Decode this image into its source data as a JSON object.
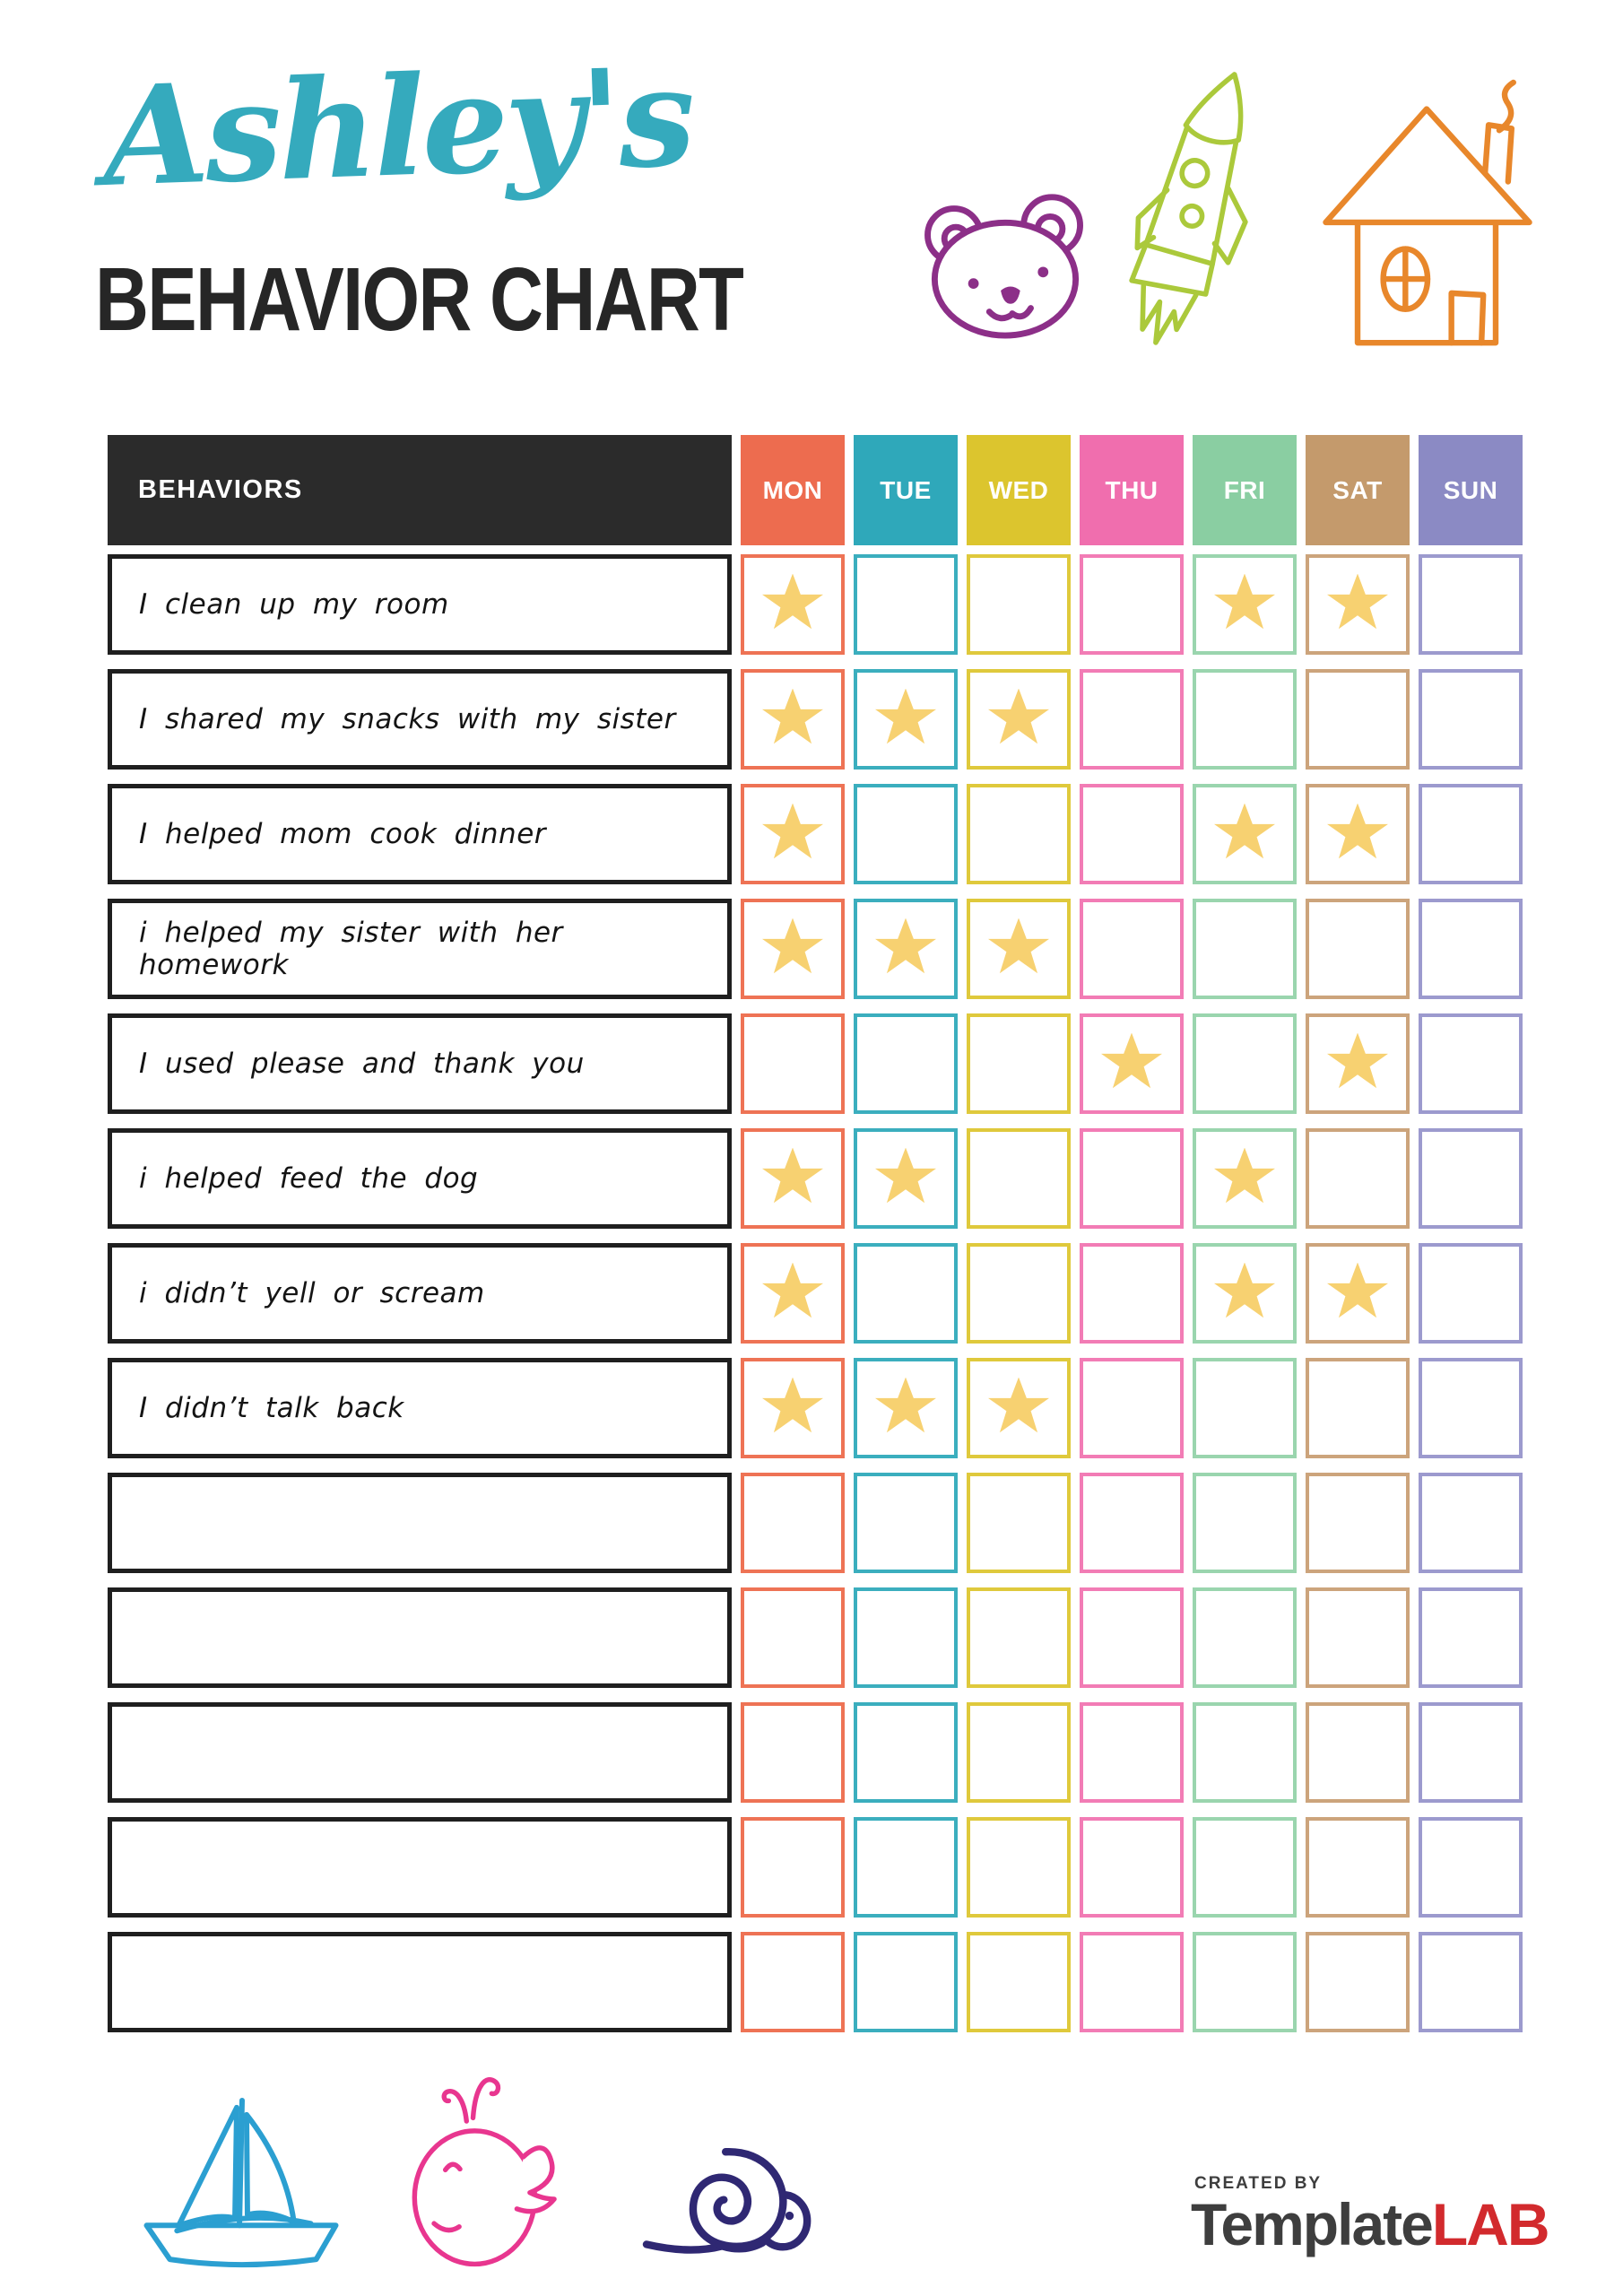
{
  "title": {
    "name_script": "Ashley's",
    "heading": "BEHAVIOR CHART"
  },
  "colors": {
    "title_teal": "#35AABD",
    "heading_dark": "#262626",
    "header_bg": "#2B2B2B",
    "star": "#F7D171",
    "bear": "#8C2F88",
    "rocket": "#ABC93B",
    "house": "#E8872B",
    "boat": "#2B9FD1",
    "whale": "#E8368F",
    "snail": "#2F2873",
    "logo_dark": "#3E3E3E",
    "logo_red": "#D22A2D"
  },
  "doodles": {
    "top": [
      "bear-doodle",
      "rocket-doodle",
      "house-doodle"
    ],
    "bottom": [
      "sailboat-doodle",
      "whale-doodle",
      "snail-doodle"
    ]
  },
  "table": {
    "behaviors_header": "BEHAVIORS",
    "days": [
      {
        "label": "MON",
        "color": "#ED6C4F",
        "border": "#EE7355"
      },
      {
        "label": "TUE",
        "color": "#2FA8BA",
        "border": "#3BAEBE"
      },
      {
        "label": "WED",
        "color": "#DCC52E",
        "border": "#DFC93C"
      },
      {
        "label": "THU",
        "color": "#F06EAE",
        "border": "#F27CB5"
      },
      {
        "label": "FRI",
        "color": "#8ACEA2",
        "border": "#9AD5AE"
      },
      {
        "label": "SAT",
        "color": "#C49A6C",
        "border": "#CCA47C"
      },
      {
        "label": "SUN",
        "color": "#8B8AC4",
        "border": "#9C9ACE"
      }
    ],
    "rows": [
      {
        "label": "I clean up my room",
        "stars": [
          1,
          0,
          0,
          0,
          1,
          1,
          0
        ]
      },
      {
        "label": "I shared my snacks with my sister",
        "stars": [
          1,
          1,
          1,
          0,
          0,
          0,
          0
        ]
      },
      {
        "label": "I helped mom cook dinner",
        "stars": [
          1,
          0,
          0,
          0,
          1,
          1,
          0
        ]
      },
      {
        "label": "i helped my sister with her homework",
        "stars": [
          1,
          1,
          1,
          0,
          0,
          0,
          0
        ]
      },
      {
        "label": "I used please and thank you",
        "stars": [
          0,
          0,
          0,
          1,
          0,
          1,
          0
        ]
      },
      {
        "label": "i helped feed the dog",
        "stars": [
          1,
          1,
          0,
          0,
          1,
          0,
          0
        ]
      },
      {
        "label": "i didn’t yell or scream",
        "stars": [
          1,
          0,
          0,
          0,
          1,
          1,
          0
        ]
      },
      {
        "label": "I didn’t talk back",
        "stars": [
          1,
          1,
          1,
          0,
          0,
          0,
          0
        ]
      },
      {
        "label": "",
        "stars": [
          0,
          0,
          0,
          0,
          0,
          0,
          0
        ]
      },
      {
        "label": "",
        "stars": [
          0,
          0,
          0,
          0,
          0,
          0,
          0
        ]
      },
      {
        "label": "",
        "stars": [
          0,
          0,
          0,
          0,
          0,
          0,
          0
        ]
      },
      {
        "label": "",
        "stars": [
          0,
          0,
          0,
          0,
          0,
          0,
          0
        ]
      },
      {
        "label": "",
        "stars": [
          0,
          0,
          0,
          0,
          0,
          0,
          0
        ]
      }
    ]
  },
  "footer": {
    "created_by": "CREATED BY",
    "brand_dark": "Template",
    "brand_accent": "LAB"
  }
}
